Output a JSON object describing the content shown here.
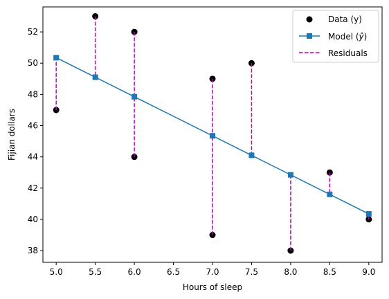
{
  "chart_data": {
    "type": "scatter",
    "title": "",
    "xlabel": "Hours of sleep",
    "ylabel": "Fijian dollars",
    "xlim": [
      4.83,
      9.17
    ],
    "ylim": [
      37.25,
      53.6
    ],
    "xticks": [
      5.0,
      5.5,
      6.0,
      6.5,
      7.0,
      7.5,
      8.0,
      8.5,
      9.0
    ],
    "xtick_labels": [
      "5.0",
      "5.5",
      "6.0",
      "6.5",
      "7.0",
      "7.5",
      "8.0",
      "8.5",
      "9.0"
    ],
    "yticks": [
      38,
      40,
      42,
      44,
      46,
      48,
      50,
      52
    ],
    "ytick_labels": [
      "38",
      "40",
      "42",
      "44",
      "46",
      "48",
      "50",
      "52"
    ],
    "grid": false,
    "legend_position": "top-right",
    "series": [
      {
        "name": "Data (y)",
        "kind": "points",
        "color": "#000000",
        "x": [
          5.0,
          5.5,
          6.0,
          6.0,
          7.0,
          7.0,
          7.5,
          8.0,
          8.5,
          9.0
        ],
        "y": [
          47.0,
          53.0,
          52.0,
          44.0,
          49.0,
          39.0,
          50.0,
          38.0,
          43.0,
          40.0
        ]
      },
      {
        "name": "Model (ŷ)",
        "kind": "line-with-square-markers",
        "color": "#1f77b4",
        "x": [
          5.0,
          5.5,
          6.0,
          7.0,
          7.5,
          8.0,
          8.5,
          9.0
        ],
        "y": [
          50.35,
          49.1,
          47.85,
          45.35,
          44.1,
          42.85,
          41.6,
          40.35
        ]
      },
      {
        "name": "Residuals",
        "kind": "dashed-segments",
        "color": "#bf00bf",
        "segments": [
          {
            "x": 5.0,
            "y1": 47.0,
            "y2": 50.35
          },
          {
            "x": 5.5,
            "y1": 53.0,
            "y2": 49.1
          },
          {
            "x": 6.0,
            "y1": 52.0,
            "y2": 47.85
          },
          {
            "x": 6.0,
            "y1": 44.0,
            "y2": 47.85
          },
          {
            "x": 7.0,
            "y1": 49.0,
            "y2": 45.35
          },
          {
            "x": 7.0,
            "y1": 39.0,
            "y2": 45.35
          },
          {
            "x": 7.5,
            "y1": 50.0,
            "y2": 44.1
          },
          {
            "x": 8.0,
            "y1": 38.0,
            "y2": 42.85
          },
          {
            "x": 8.5,
            "y1": 43.0,
            "y2": 41.6
          },
          {
            "x": 9.0,
            "y1": 40.0,
            "y2": 40.35
          }
        ]
      }
    ],
    "legend": {
      "data_label": "Data (y)",
      "model_label_prefix": "Model (",
      "model_label_symbol": "ŷ",
      "model_label_suffix": ")",
      "residuals_label": "Residuals"
    }
  }
}
